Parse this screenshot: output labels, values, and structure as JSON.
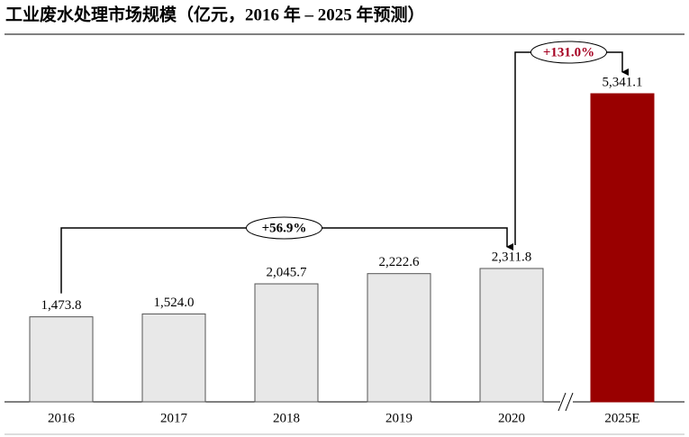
{
  "chart_data": {
    "type": "bar",
    "title": "工业废水处理市场规模（亿元，2016 年 – 2025 年预测）",
    "categories": [
      "2016",
      "2017",
      "2018",
      "2019",
      "2020",
      "2025E"
    ],
    "values": [
      1473.8,
      1524.0,
      2045.7,
      2222.6,
      2311.8,
      5341.1
    ],
    "value_labels": [
      "1,473.8",
      "1,524.0",
      "2,045.7",
      "2,222.6",
      "2,311.8",
      "5,341.1"
    ],
    "colors": [
      "#e8e8e8",
      "#e8e8e8",
      "#e8e8e8",
      "#e8e8e8",
      "#e8e8e8",
      "#990000"
    ],
    "annotations": [
      {
        "text": "+56.9%",
        "color": "#000000"
      },
      {
        "text": "+131.0%",
        "color": "#a50021"
      }
    ]
  }
}
